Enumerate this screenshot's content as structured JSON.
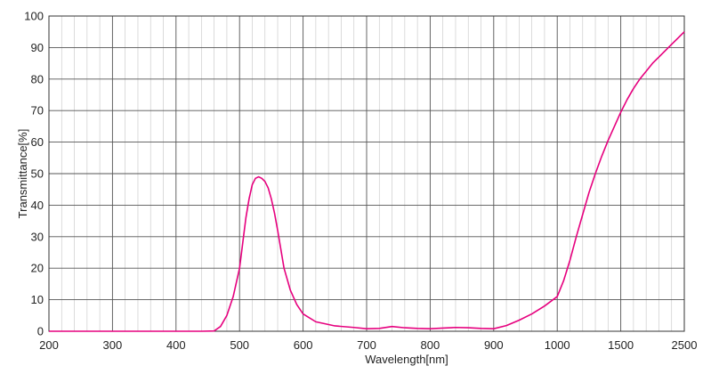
{
  "chart_data": {
    "type": "line",
    "title": "",
    "xlabel": "Wavelength[nm]",
    "ylabel": "Transmittance[%]",
    "x_ticks": [
      "200",
      "300",
      "400",
      "500",
      "600",
      "700",
      "800",
      "900",
      "1000",
      "1500",
      "2500"
    ],
    "y_ticks": [
      "0",
      "10",
      "20",
      "30",
      "40",
      "50",
      "60",
      "70",
      "80",
      "90",
      "100"
    ],
    "ylim": [
      0,
      100
    ],
    "grid": true,
    "x_scale": "piecewise: 100 nm per major division from 200 to 1000 nm, 500 nm per division from 1000 to 1500 nm, 1000 nm per division from 1500 to 2500 nm",
    "series": [
      {
        "color": "#e6007e",
        "x": [
          200,
          300,
          400,
          440,
          460,
          470,
          480,
          490,
          500,
          505,
          510,
          515,
          520,
          525,
          530,
          535,
          540,
          545,
          550,
          555,
          560,
          565,
          570,
          580,
          590,
          600,
          620,
          650,
          680,
          700,
          720,
          740,
          760,
          780,
          800,
          820,
          840,
          860,
          880,
          900,
          920,
          940,
          960,
          980,
          1000,
          1050,
          1100,
          1150,
          1200,
          1250,
          1300,
          1350,
          1400,
          1450,
          1500,
          1600,
          1700,
          1800,
          1900,
          2000,
          2100,
          2200,
          2300,
          2400,
          2500
        ],
        "y": [
          0,
          0,
          0,
          0,
          0.1,
          1.5,
          5,
          11,
          20,
          28,
          36,
          42,
          46.5,
          48.5,
          49,
          48.5,
          47.5,
          45.5,
          42,
          37.5,
          32,
          26,
          20,
          13,
          8.5,
          5.5,
          3,
          1.7,
          1.2,
          0.8,
          0.9,
          1.5,
          1.1,
          0.9,
          0.8,
          1.0,
          1.2,
          1.1,
          0.9,
          0.8,
          1.8,
          3.5,
          5.5,
          8,
          11,
          16,
          22.5,
          30,
          37,
          44,
          50,
          55.5,
          60.5,
          65,
          69.5,
          73.5,
          77,
          80,
          82.5,
          85,
          87,
          89,
          91,
          93,
          95
        ]
      }
    ]
  }
}
